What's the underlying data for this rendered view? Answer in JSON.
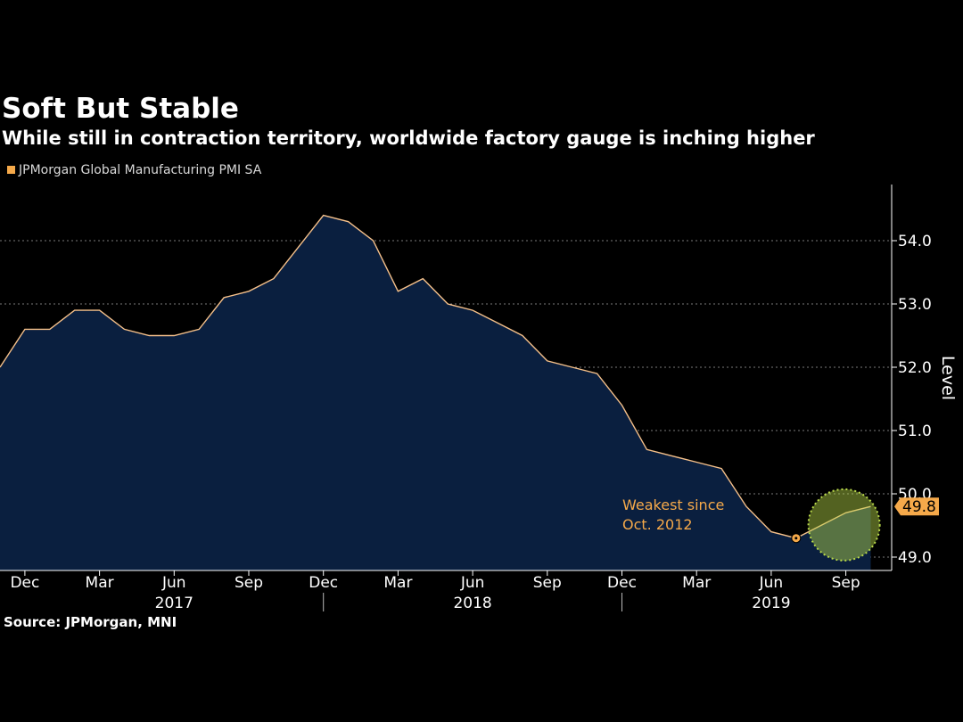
{
  "title": "Soft But Stable",
  "subtitle": "While still in contraction territory, worldwide factory gauge is inching higher",
  "source": "Source: JPMorgan, MNI",
  "colors": {
    "background": "#000000",
    "area_fill": "#0a1f3f",
    "line": "#f5c08a",
    "accent": "#f5a94a",
    "highlight": "#b9d94a",
    "gridline": "#7a7a7a"
  },
  "chart_data": {
    "type": "area",
    "ylabel": "Level",
    "ylim": [
      48.8,
      54.9
    ],
    "yticks": [
      49.0,
      50.0,
      51.0,
      52.0,
      53.0,
      54.0
    ],
    "ytick_labels": [
      "49.0",
      "50.0",
      "51.0",
      "52.0",
      "53.0",
      "54.0"
    ],
    "grid": true,
    "y_axis_position": "right",
    "legend_position": "top-left",
    "x_tick_labels": [
      "Dec",
      "Mar",
      "Jun",
      "Sep",
      "Dec",
      "Mar",
      "Jun",
      "Sep",
      "Dec",
      "Mar",
      "Jun",
      "Sep"
    ],
    "year_labels": [
      "2017",
      "2018",
      "2019"
    ],
    "series": [
      {
        "name": "JPMorgan Global Manufacturing PMI SA",
        "x": [
          "2016-11",
          "2016-12",
          "2017-01",
          "2017-02",
          "2017-03",
          "2017-04",
          "2017-05",
          "2017-06",
          "2017-07",
          "2017-08",
          "2017-09",
          "2017-10",
          "2017-11",
          "2017-12",
          "2018-01",
          "2018-02",
          "2018-03",
          "2018-04",
          "2018-05",
          "2018-06",
          "2018-07",
          "2018-08",
          "2018-09",
          "2018-10",
          "2018-11",
          "2018-12",
          "2019-01",
          "2019-02",
          "2019-03",
          "2019-04",
          "2019-05",
          "2019-06",
          "2019-07",
          "2019-08",
          "2019-09",
          "2019-10"
        ],
        "values": [
          52.0,
          52.6,
          52.6,
          52.9,
          52.9,
          52.6,
          52.5,
          52.5,
          52.6,
          53.1,
          53.2,
          53.4,
          53.9,
          54.4,
          54.3,
          54.0,
          53.2,
          53.4,
          53.0,
          52.9,
          52.7,
          52.5,
          52.1,
          52.0,
          51.9,
          51.4,
          50.7,
          50.6,
          50.5,
          50.4,
          49.8,
          49.4,
          49.3,
          49.5,
          49.7,
          49.8
        ]
      }
    ],
    "last_value_label": "49.8",
    "annotations": [
      {
        "text_line1": "Weakest since",
        "text_line2": "Oct. 2012",
        "x": "2019-07",
        "y": 49.3
      }
    ],
    "highlight_region": {
      "x_from": "2019-08",
      "x_to": "2019-10"
    }
  }
}
